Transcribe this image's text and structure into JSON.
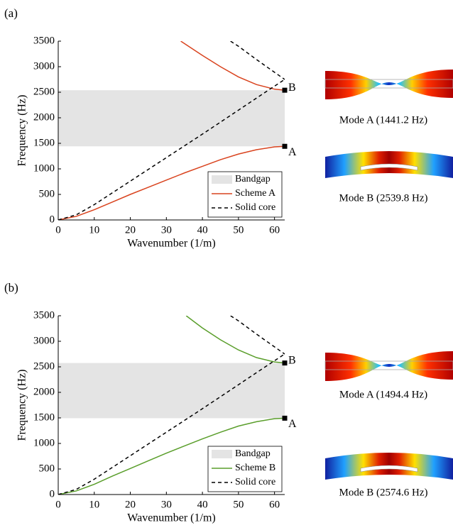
{
  "chart_data": [
    {
      "type": "line",
      "panel": "(a)",
      "xlabel": "Wavenumber (1/m)",
      "ylabel": "Frequency (Hz)",
      "xlim": [
        0,
        62.83
      ],
      "ylim": [
        0,
        3500
      ],
      "xticks": [
        0,
        10,
        20,
        30,
        40,
        50,
        60
      ],
      "yticks": [
        0,
        500,
        1000,
        1500,
        2000,
        2500,
        3000,
        3500
      ],
      "legend": "lower right",
      "band": {
        "name": "Bandgap",
        "color": "#e4e4e4",
        "range": [
          1441.2,
          2539.8
        ]
      },
      "series": [
        {
          "name": "Scheme A",
          "color": "#d9431e",
          "dash": false,
          "branches": [
            {
              "x": [
                0,
                5,
                10,
                15,
                20,
                25,
                30,
                35,
                40,
                45,
                50,
                55,
                60,
                62.83
              ],
              "values": [
                0,
                70,
                200,
                350,
                500,
                640,
                780,
                920,
                1050,
                1180,
                1290,
                1375,
                1430,
                1441.2
              ]
            },
            {
              "x": [
                34,
                40,
                45,
                50,
                55,
                60,
                62.83
              ],
              "values": [
                3500,
                3220,
                3000,
                2800,
                2650,
                2560,
                2539.8
              ]
            }
          ]
        },
        {
          "name": "Solid core",
          "color": "#000000",
          "dash": true,
          "branches": [
            {
              "x": [
                0,
                5,
                10,
                20,
                30,
                40,
                50,
                60,
                62.83
              ],
              "values": [
                0,
                100,
                300,
                760,
                1220,
                1680,
                2150,
                2620,
                2750
              ]
            },
            {
              "x": [
                47.8,
                50,
                55,
                60,
                62.83
              ],
              "values": [
                3500,
                3400,
                3140,
                2890,
                2750
              ]
            }
          ]
        }
      ],
      "points": [
        {
          "label": "A",
          "x": 62.83,
          "y": 1441.2
        },
        {
          "label": "B",
          "x": 62.83,
          "y": 2539.8
        }
      ],
      "modes": [
        "Mode A (1441.2 Hz)",
        "Mode B (2539.8 Hz)"
      ]
    },
    {
      "type": "line",
      "panel": "(b)",
      "xlabel": "Wavenumber (1/m)",
      "ylabel": "Frequency (Hz)",
      "xlim": [
        0,
        62.83
      ],
      "ylim": [
        0,
        3500
      ],
      "xticks": [
        0,
        10,
        20,
        30,
        40,
        50,
        60
      ],
      "yticks": [
        0,
        500,
        1000,
        1500,
        2000,
        2500,
        3000,
        3500
      ],
      "legend": "lower right",
      "band": {
        "name": "Bandgap",
        "color": "#e4e4e4",
        "range": [
          1494.4,
          2574.6
        ]
      },
      "series": [
        {
          "name": "Scheme B",
          "color": "#5a9e2b",
          "dash": false,
          "branches": [
            {
              "x": [
                0,
                5,
                10,
                15,
                20,
                25,
                30,
                35,
                40,
                45,
                50,
                55,
                60,
                62.83
              ],
              "values": [
                0,
                70,
                200,
                360,
                510,
                660,
                810,
                950,
                1090,
                1220,
                1340,
                1425,
                1485,
                1494.4
              ]
            },
            {
              "x": [
                35.5,
                40,
                45,
                50,
                55,
                60,
                62.83
              ],
              "values": [
                3500,
                3260,
                3030,
                2830,
                2680,
                2595,
                2574.6
              ]
            }
          ]
        },
        {
          "name": "Solid core",
          "color": "#000000",
          "dash": true,
          "branches": [
            {
              "x": [
                0,
                5,
                10,
                20,
                30,
                40,
                50,
                60,
                62.83
              ],
              "values": [
                0,
                100,
                300,
                760,
                1220,
                1680,
                2150,
                2620,
                2750
              ]
            },
            {
              "x": [
                47.8,
                50,
                55,
                60,
                62.83
              ],
              "values": [
                3500,
                3400,
                3140,
                2890,
                2750
              ]
            }
          ]
        }
      ],
      "points": [
        {
          "label": "A",
          "x": 62.83,
          "y": 1494.4
        },
        {
          "label": "B",
          "x": 62.83,
          "y": 2574.6
        }
      ],
      "modes": [
        "Mode A (1494.4 Hz)",
        "Mode B (2574.6 Hz)"
      ]
    }
  ]
}
